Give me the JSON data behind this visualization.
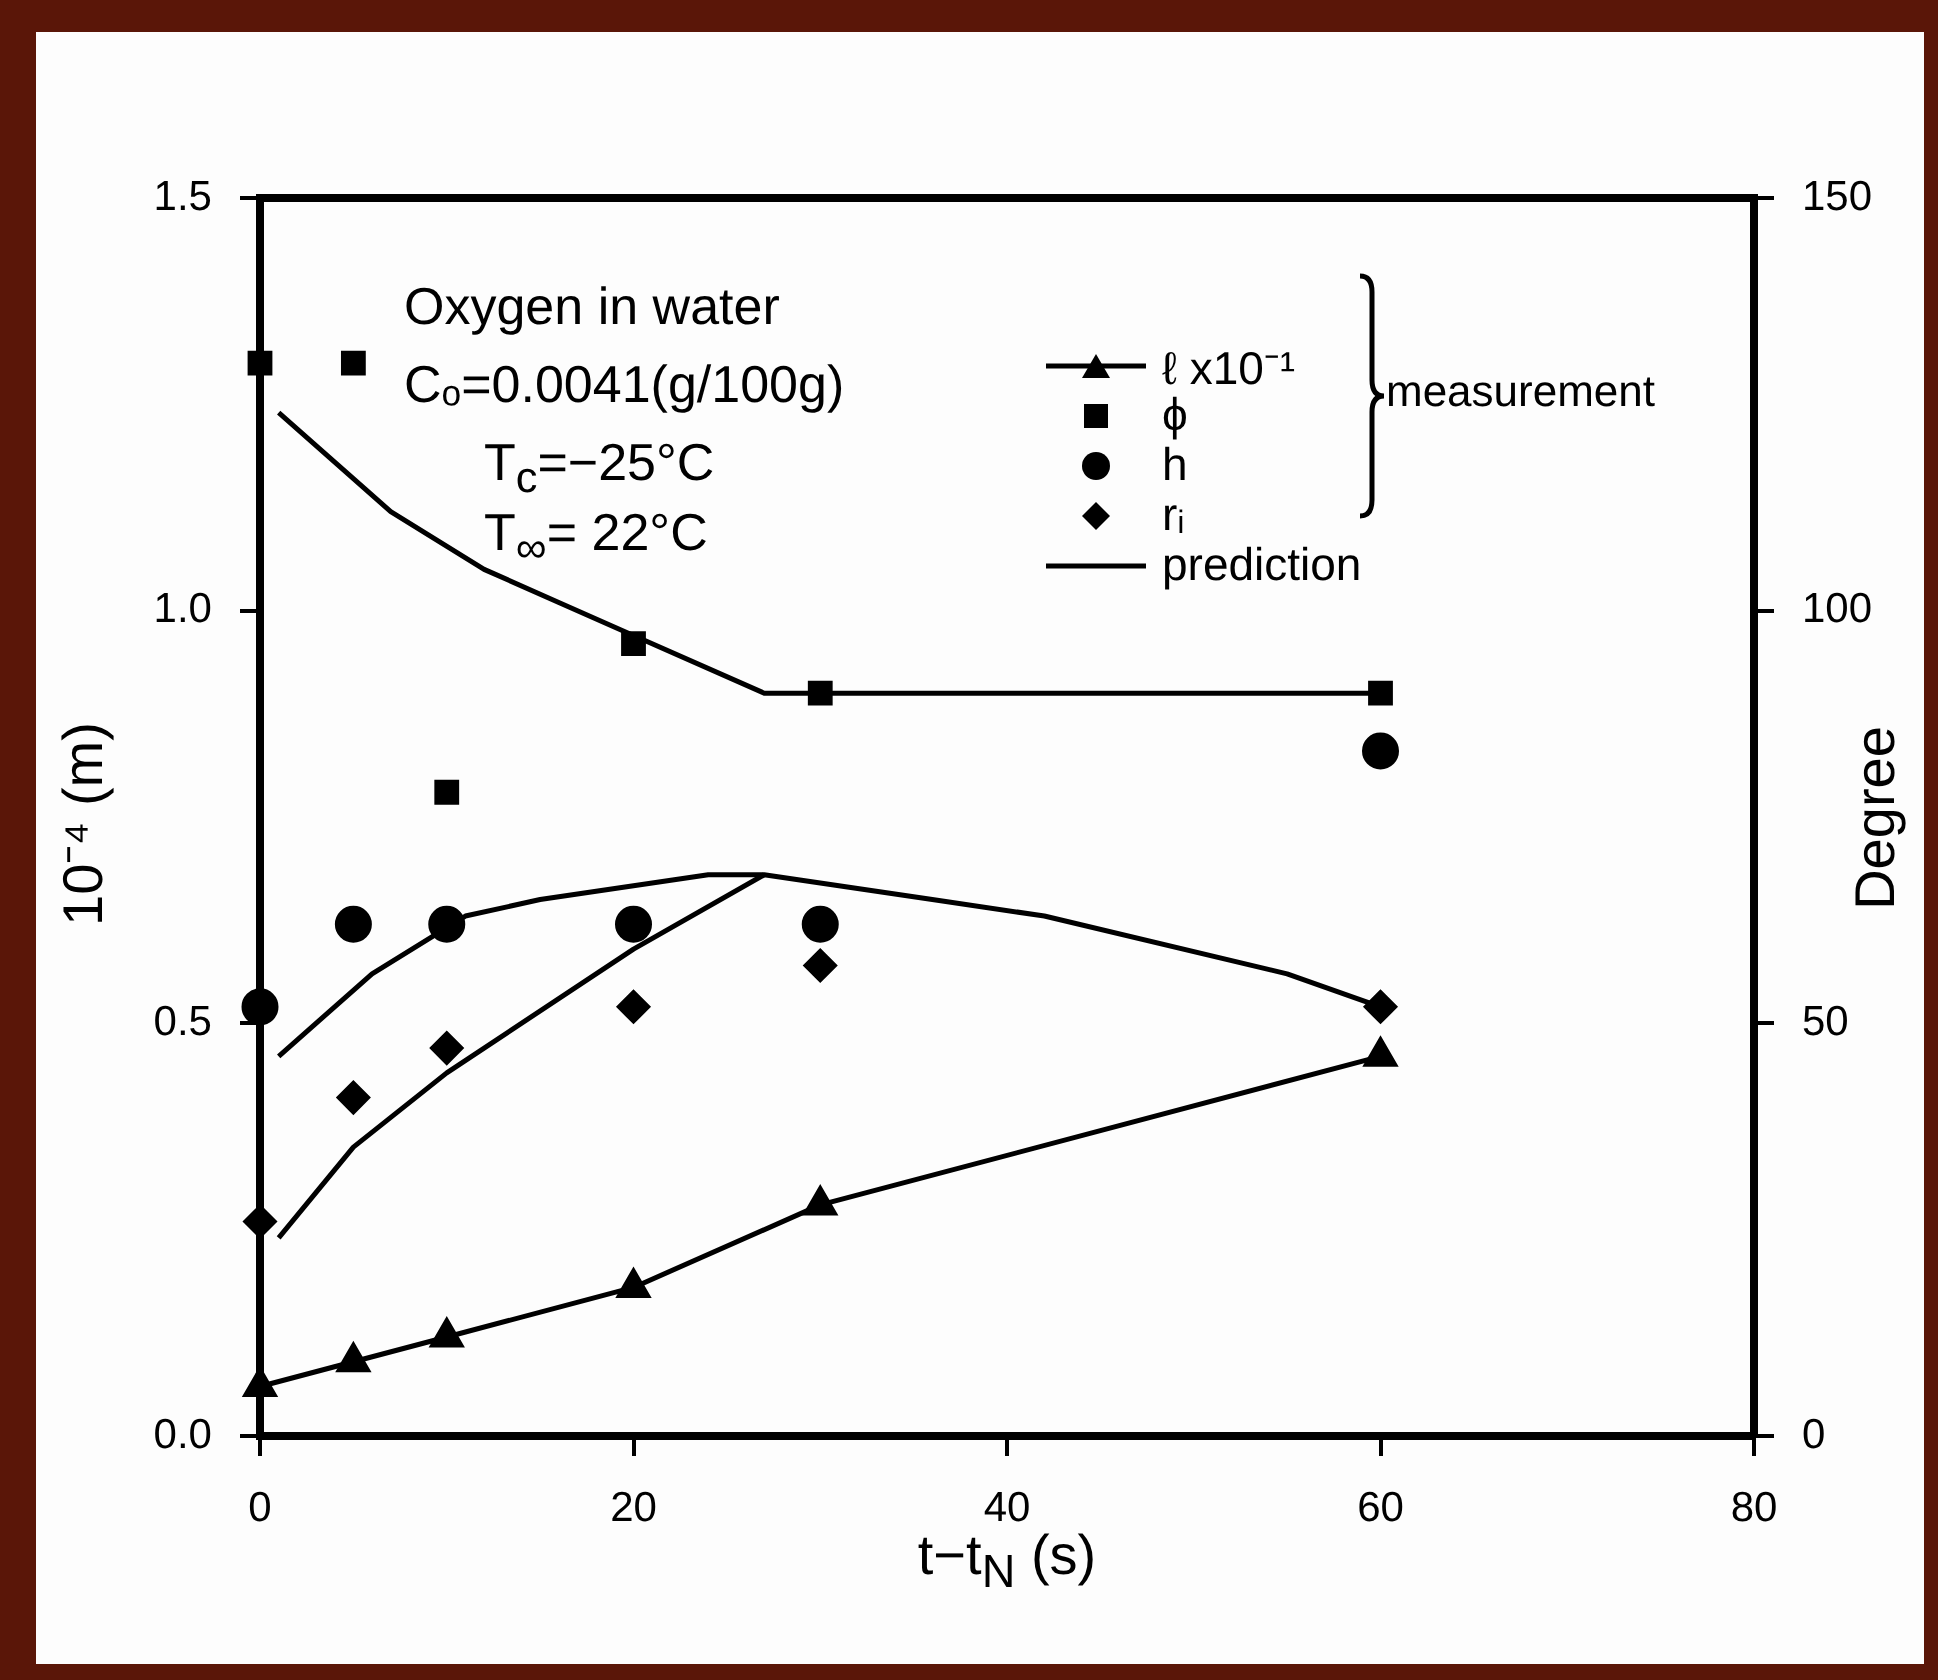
{
  "chart_data": {
    "type": "scatter",
    "xlabel": "t−t$_{N}$ (s)",
    "ylabel": "10⁻⁴ (m)",
    "y2label": "Degree",
    "xlim": [
      0,
      80
    ],
    "xticks": [
      0,
      20,
      40,
      60,
      80
    ],
    "ylim": [
      0,
      1.5
    ],
    "yticks": [
      {
        "value": 0,
        "label": "0.0"
      },
      {
        "value": 0.5,
        "label": "0.5"
      },
      {
        "value": 1,
        "label": "1.0"
      },
      {
        "value": 1.5,
        "label": "1.5"
      }
    ],
    "y2lim": [
      0,
      150
    ],
    "y2ticks": [
      0,
      50,
      100,
      150
    ],
    "legend": "top right",
    "annotations": [
      "Oxygen in water",
      "Cₒ=0.0041(g/100g)",
      "T$_{c}$=−25°C",
      "T$_{∞}$=  22°C",
      "measurement"
    ],
    "series": [
      {
        "name": "ℓ x10⁻¹",
        "type": "line",
        "marker": "triangle",
        "color": "#000000",
        "x": [
          0,
          5,
          10,
          20,
          30,
          60
        ],
        "values": [
          0.06,
          0.09,
          0.12,
          0.18,
          0.28,
          0.46
        ]
      },
      {
        "name": "ϕ",
        "type": "scatter",
        "marker": "square",
        "axis": "y2",
        "color": "#000000",
        "x": [
          0,
          5,
          10,
          20,
          30,
          60
        ],
        "values": [
          130,
          130,
          78,
          96,
          90,
          90
        ]
      },
      {
        "name": "h",
        "type": "scatter",
        "marker": "circle",
        "color": "#000000",
        "x": [
          0,
          5,
          10,
          20,
          30,
          60
        ],
        "values": [
          0.52,
          0.62,
          0.62,
          0.62,
          0.62,
          0.83
        ]
      },
      {
        "name": "rᵢ",
        "type": "scatter",
        "marker": "diamond",
        "color": "#000000",
        "x": [
          0,
          5,
          10,
          20,
          30,
          60
        ],
        "values": [
          0.26,
          0.41,
          0.47,
          0.52,
          0.57,
          0.52
        ]
      },
      {
        "name": "prediction",
        "type": "line",
        "marker": "none",
        "axis": "y2",
        "color": "#000000",
        "x": [
          1,
          4,
          7,
          12,
          16,
          20,
          27,
          60
        ],
        "values": [
          124,
          118,
          112,
          105,
          101,
          97,
          90,
          90
        ]
      },
      {
        "type": "line",
        "marker": "none",
        "color": "#000000",
        "x": [
          1,
          6,
          11,
          15,
          24,
          27,
          36,
          42,
          55,
          60
        ],
        "values": [
          0.46,
          0.56,
          0.63,
          0.65,
          0.68,
          0.68,
          0.65,
          0.63,
          0.56,
          0.52
        ]
      },
      {
        "type": "line",
        "marker": "none",
        "color": "#000000",
        "x": [
          1,
          5,
          10,
          20,
          27
        ],
        "values": [
          0.24,
          0.35,
          0.44,
          0.59,
          0.68
        ]
      }
    ]
  }
}
